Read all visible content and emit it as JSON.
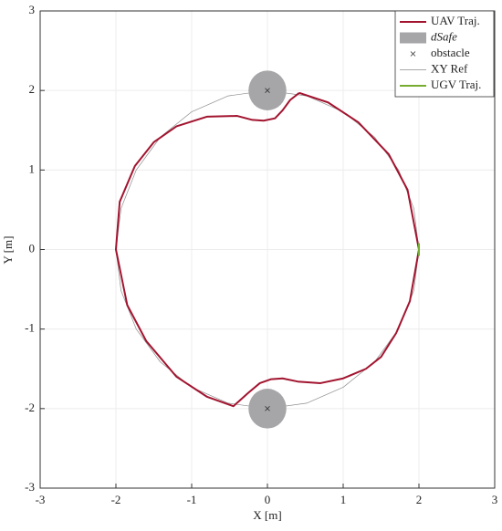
{
  "chart_data": {
    "type": "line",
    "xlabel": "X [m]",
    "ylabel": "Y [m]",
    "xlim": [
      -3,
      3
    ],
    "ylim": [
      -3,
      3
    ],
    "xticks": [
      -3,
      -2,
      -1,
      0,
      1,
      2,
      3
    ],
    "yticks": [
      -3,
      -2,
      -1,
      0,
      1,
      2,
      3
    ],
    "grid": true,
    "legend": "upper right",
    "series": [
      {
        "name": "UAV Traj.",
        "color": "#a2142f",
        "style": "line",
        "x": [
          0.42,
          0.8,
          1.2,
          1.6,
          1.85,
          2.0,
          1.88,
          1.7,
          1.5,
          1.3,
          1.0,
          0.7,
          0.4,
          0.2,
          0.05,
          -0.1,
          -0.25,
          -0.45,
          -0.8,
          -1.2,
          -1.6,
          -1.85,
          -2.0,
          -1.95,
          -1.75,
          -1.5,
          -1.2,
          -0.8,
          -0.4,
          -0.2,
          -0.05,
          0.1,
          0.2,
          0.3,
          0.42
        ],
        "y": [
          1.97,
          1.85,
          1.6,
          1.2,
          0.75,
          0.0,
          -0.65,
          -1.05,
          -1.35,
          -1.5,
          -1.62,
          -1.68,
          -1.66,
          -1.62,
          -1.63,
          -1.68,
          -1.8,
          -1.97,
          -1.85,
          -1.6,
          -1.15,
          -0.7,
          0.0,
          0.6,
          1.05,
          1.35,
          1.55,
          1.67,
          1.68,
          1.63,
          1.62,
          1.65,
          1.75,
          1.88,
          1.97
        ]
      },
      {
        "name": "dSafe",
        "color": "#a6a6a9",
        "style": "disk",
        "x": [
          0,
          0
        ],
        "y": [
          2,
          -2
        ],
        "radius": 0.25
      },
      {
        "name": "obstacle",
        "color": "#333333",
        "style": "cross",
        "x": [
          0,
          0
        ],
        "y": [
          2,
          -2
        ]
      },
      {
        "name": "XY Ref",
        "color": "#8c8c8c",
        "style": "thin",
        "x": [
          2.0,
          1.932,
          1.732,
          1.414,
          1.0,
          0.518,
          0.0,
          -0.518,
          -1.0,
          -1.414,
          -1.732,
          -1.932,
          -2.0,
          -1.932,
          -1.732,
          -1.414,
          -1.0,
          -0.518,
          0.0,
          0.518,
          1.0,
          1.414,
          1.732,
          1.932,
          2.0
        ],
        "y": [
          0.0,
          0.518,
          1.0,
          1.414,
          1.732,
          1.932,
          2.0,
          1.932,
          1.732,
          1.414,
          1.0,
          0.518,
          0.0,
          -0.518,
          -1.0,
          -1.414,
          -1.732,
          -1.932,
          -2.0,
          -1.932,
          -1.732,
          -1.414,
          -1.0,
          -0.518,
          0.0
        ]
      },
      {
        "name": "UGV Traj.",
        "color": "#77ac30",
        "style": "line",
        "x": [
          2.0,
          2.0
        ],
        "y": [
          -0.08,
          0.08
        ]
      }
    ]
  }
}
